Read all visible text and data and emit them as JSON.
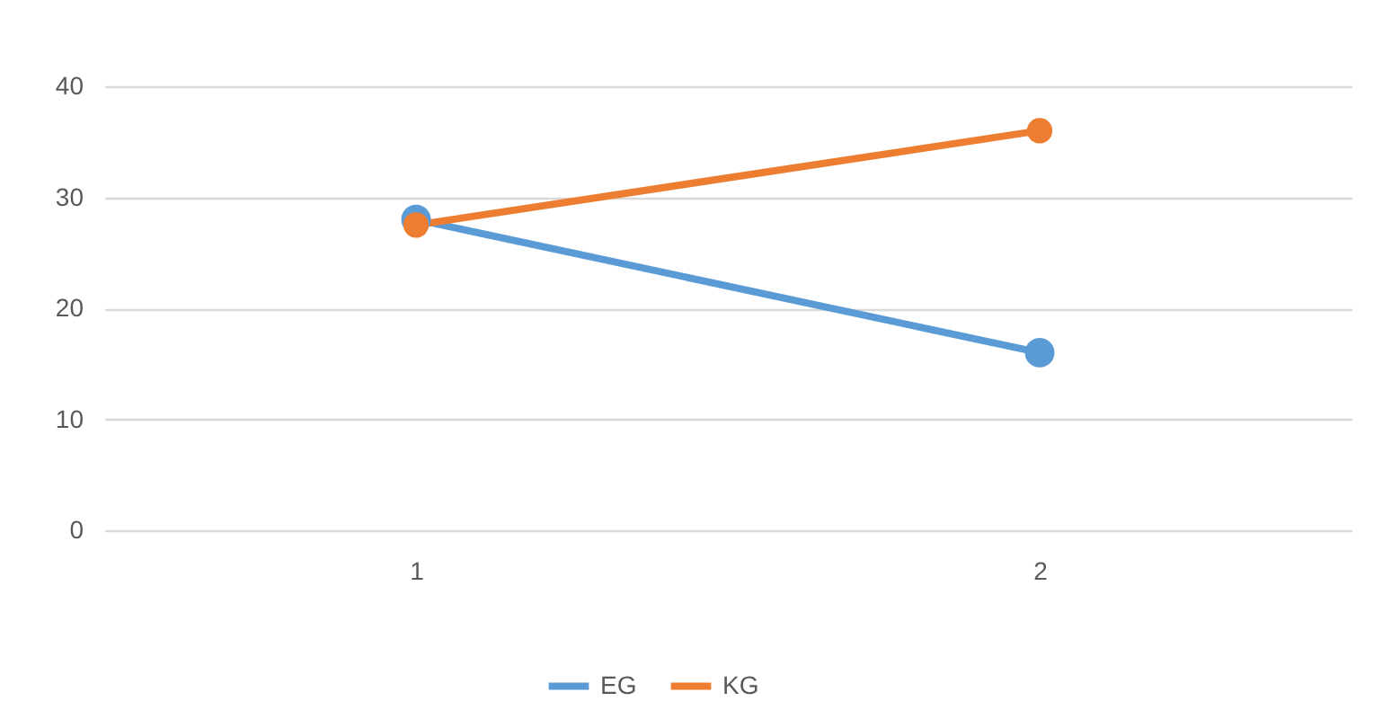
{
  "chart_data": {
    "type": "line",
    "categories": [
      "1",
      "2"
    ],
    "series": [
      {
        "name": "EG",
        "color": "#5b9bd5",
        "values": [
          28,
          16
        ]
      },
      {
        "name": "KG",
        "color": "#ed7d31",
        "values": [
          27.5,
          36
        ]
      }
    ],
    "ylim": [
      0,
      40
    ],
    "yticks": [
      0,
      10,
      20,
      30,
      40
    ],
    "grid": "y",
    "legend": "bottom",
    "marker": "circle",
    "line_style": "solid"
  }
}
